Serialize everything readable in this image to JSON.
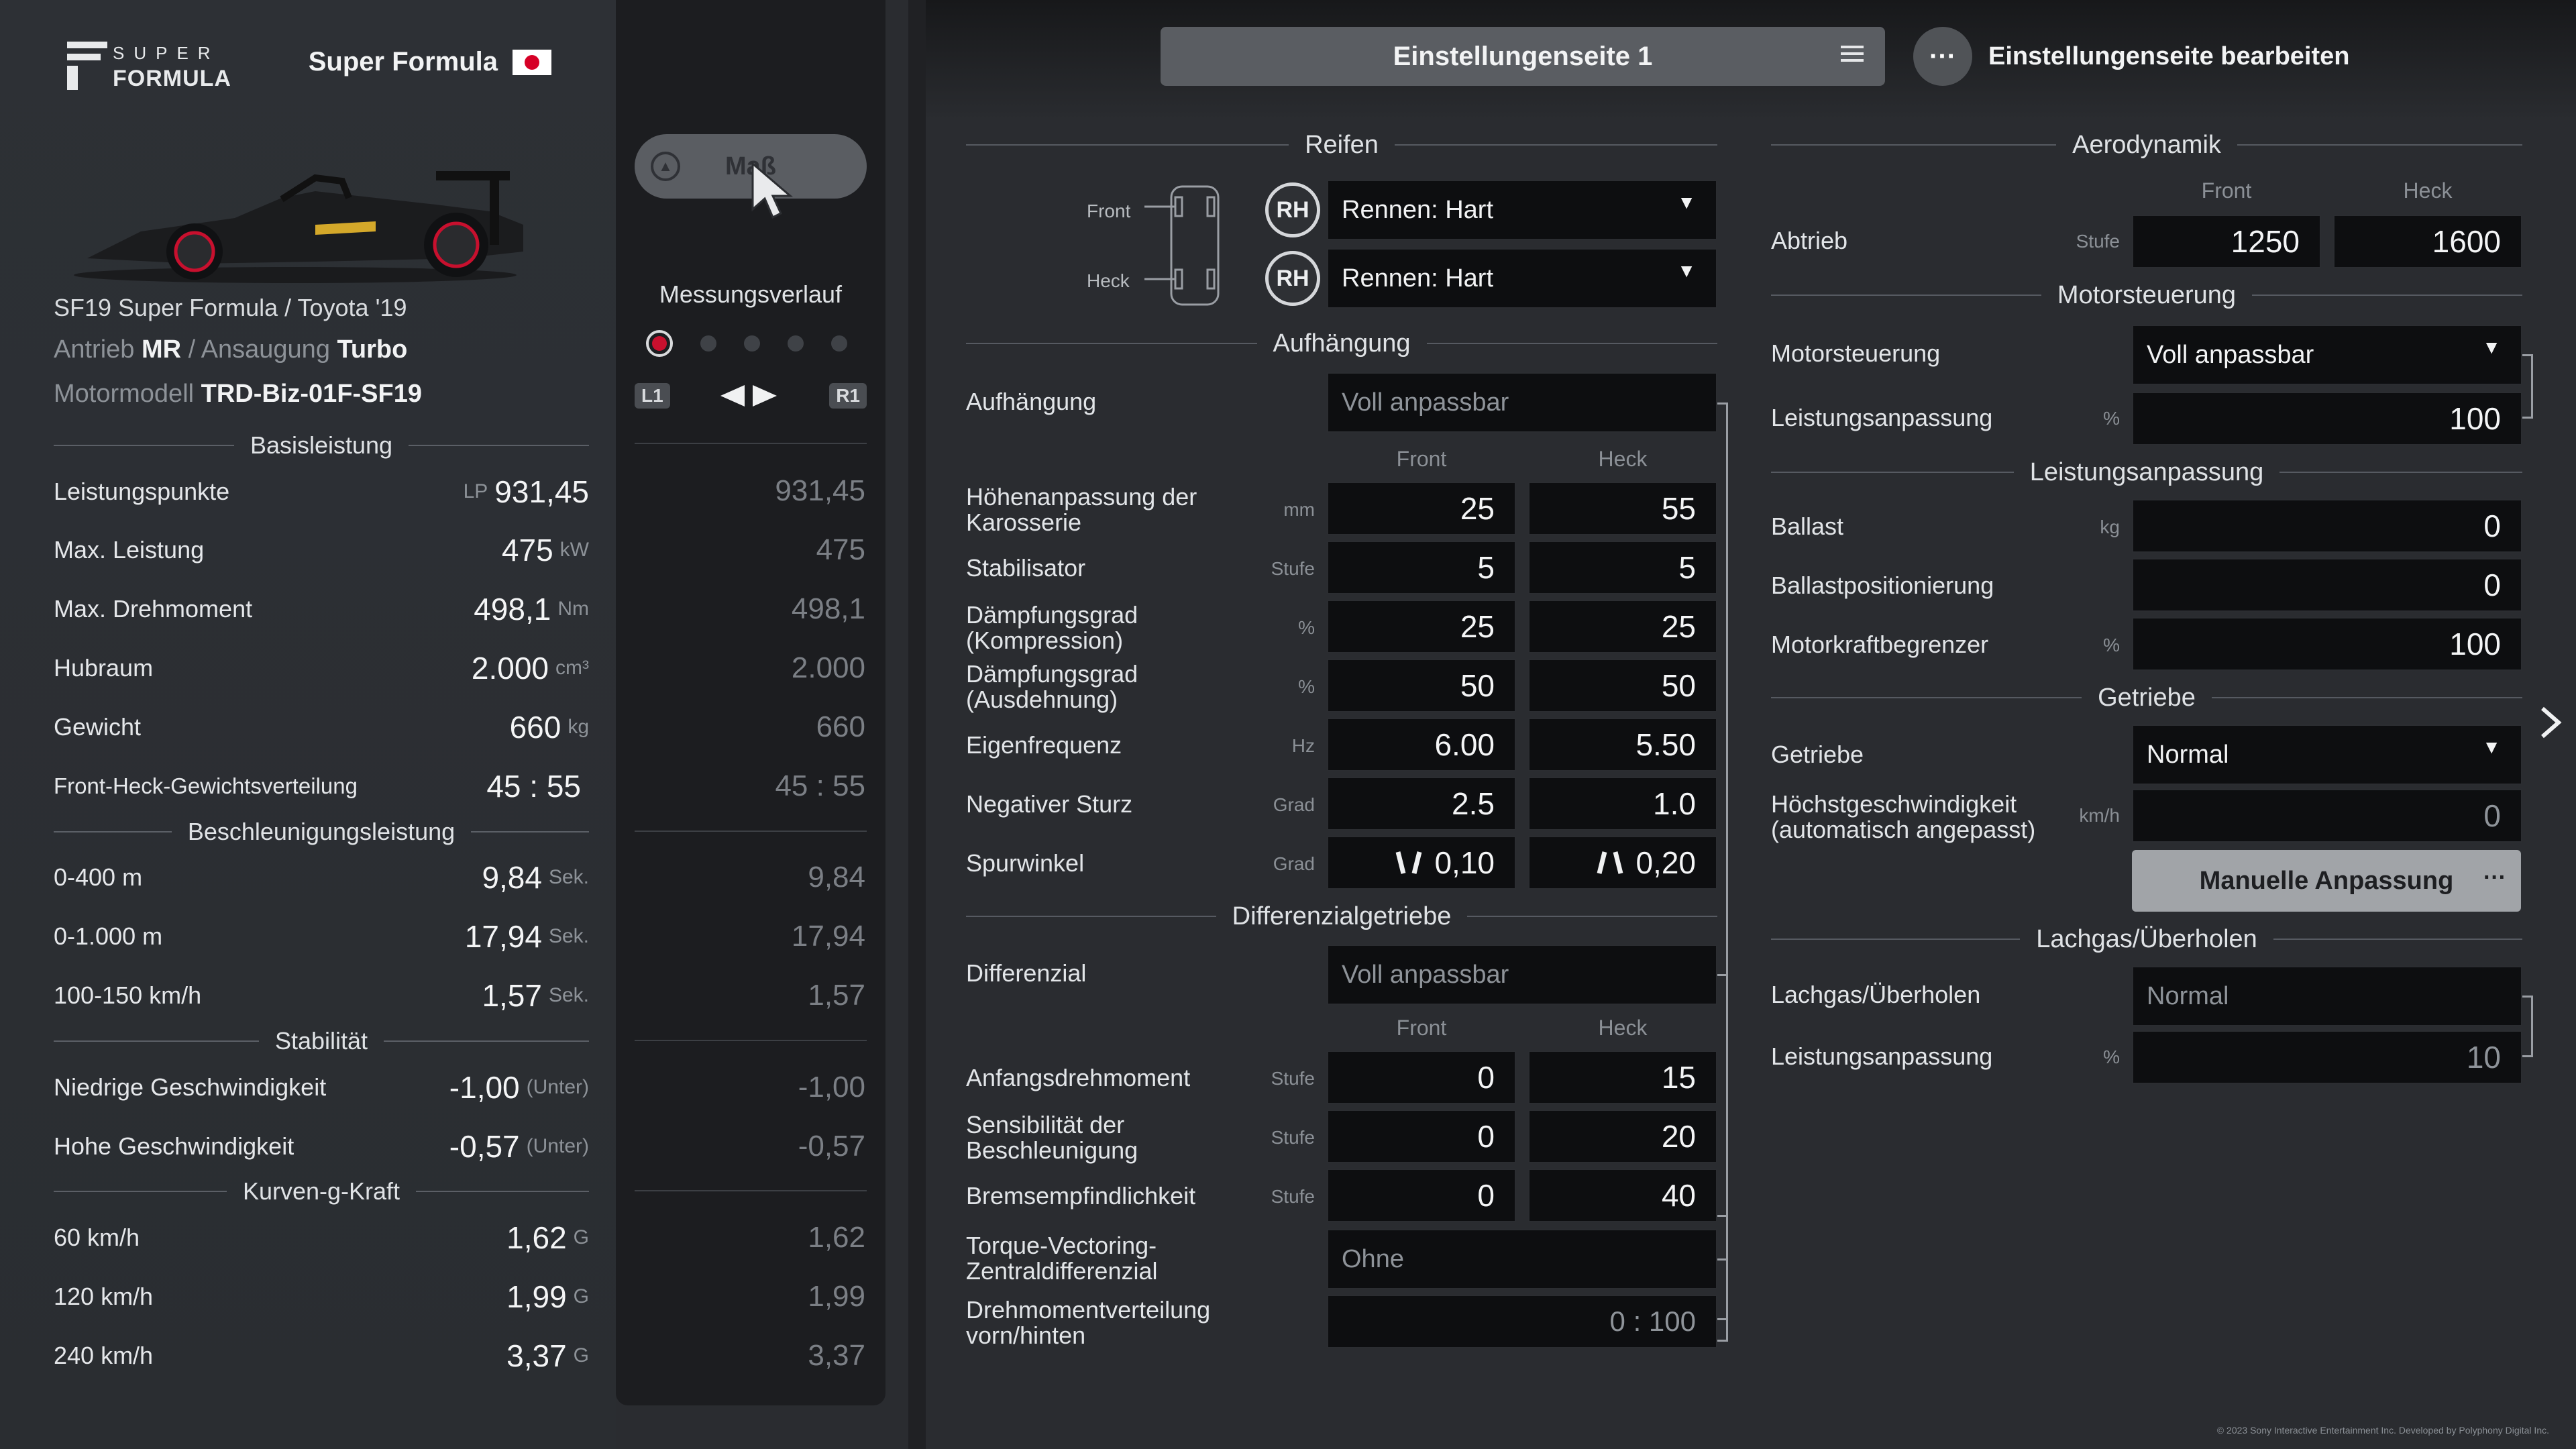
{
  "header": {
    "series_name": "Super Formula",
    "logo_top": "SUPER",
    "logo_bottom": "FORMULA",
    "page_selector": "Einstellungenseite 1",
    "edit_page": "Einstellungenseite bearbeiten"
  },
  "car": {
    "name": "SF19 Super Formula / Toyota '19",
    "drive_label": "Antrieb",
    "drive": "MR",
    "sep": "/",
    "aspiration_label": "Ansaugung",
    "aspiration": "Turbo",
    "engine_label": "Motormodell",
    "engine": "TRD-Biz-01F-SF19"
  },
  "stats": {
    "basis_header": "Basisleistung",
    "pp_label": "Leistungspunkte",
    "pp_prefix": "LP",
    "pp_value": "931,45",
    "power_label": "Max. Leistung",
    "power_value": "475",
    "power_unit": "kW",
    "torque_label": "Max. Drehmoment",
    "torque_value": "498,1",
    "torque_unit": "Nm",
    "disp_label": "Hubraum",
    "disp_value": "2.000",
    "disp_unit": "cm³",
    "weight_label": "Gewicht",
    "weight_value": "660",
    "weight_unit": "kg",
    "dist_label": "Front-Heck-Gewichtsverteilung",
    "dist_value": "45 : 55",
    "accel_header": "Beschleunigungsleistung",
    "a400_label": "0-400 m",
    "a400_value": "9,84",
    "a400_unit": "Sek.",
    "a1000_label": "0-1.000 m",
    "a1000_value": "17,94",
    "a1000_unit": "Sek.",
    "a100_label": "100-150 km/h",
    "a100_value": "1,57",
    "a100_unit": "Sek.",
    "stab_header": "Stabilität",
    "low_label": "Niedrige Geschwindigkeit",
    "low_value": "-1,00",
    "low_unit": "(Unter)",
    "high_label": "Hohe Geschwindigkeit",
    "high_value": "-0,57",
    "high_unit": "(Unter)",
    "g_header": "Kurven-g-Kraft",
    "g60_label": "60 km/h",
    "g60_value": "1,62",
    "g_unit": "G",
    "g120_label": "120 km/h",
    "g120_value": "1,99",
    "g240_label": "240 km/h",
    "g240_value": "3,37"
  },
  "history": {
    "button_label": "Maß",
    "button_icon": "triangle-icon",
    "title": "Messungsverlauf",
    "l1": "L1",
    "r1": "R1",
    "values": [
      "931,45",
      "475",
      "498,1",
      "2.000",
      "660",
      "45 : 55",
      "9,84",
      "17,94",
      "1,57",
      "-1,00",
      "-0,57",
      "1,62",
      "1,99",
      "3,37"
    ]
  },
  "tires": {
    "header": "Reifen",
    "front_label": "Front",
    "rear_label": "Heck",
    "rh_badge": "RH",
    "front_value": "Rennen: Hart",
    "rear_value": "Rennen: Hart"
  },
  "suspension": {
    "header": "Aufhängung",
    "type_label": "Aufhängung",
    "type_value": "Voll anpassbar",
    "col_front": "Front",
    "col_rear": "Heck",
    "ride_label": "Höhenanpassung der Karosserie",
    "ride_unit": "mm",
    "ride_front": "25",
    "ride_rear": "55",
    "arb_label": "Stabilisator",
    "arb_unit": "Stufe",
    "arb_front": "5",
    "arb_rear": "5",
    "comp_label": "Dämpfungsgrad (Kompression)",
    "comp_unit": "%",
    "comp_front": "25",
    "comp_rear": "25",
    "ext_label": "Dämpfungsgrad (Ausdehnung)",
    "ext_unit": "%",
    "ext_front": "50",
    "ext_rear": "50",
    "freq_label": "Eigenfrequenz",
    "freq_unit": "Hz",
    "freq_front": "6.00",
    "freq_rear": "5.50",
    "camber_label": "Negativer Sturz",
    "camber_unit": "Grad",
    "camber_front": "2.5",
    "camber_rear": "1.0",
    "toe_label": "Spurwinkel",
    "toe_unit": "Grad",
    "toe_front": "0,10",
    "toe_rear": "0,20"
  },
  "differential": {
    "header": "Differenzialgetriebe",
    "type_label": "Differenzial",
    "type_value": "Voll anpassbar",
    "col_front": "Front",
    "col_rear": "Heck",
    "initial_label": "Anfangsdrehmoment",
    "initial_unit": "Stufe",
    "initial_front": "0",
    "initial_rear": "15",
    "accel_label": "Sensibilität der Beschleunigung",
    "accel_unit": "Stufe",
    "accel_front": "0",
    "accel_rear": "20",
    "brake_label": "Bremsempfindlichkeit",
    "brake_unit": "Stufe",
    "brake_front": "0",
    "brake_rear": "40",
    "tv_label": "Torque-Vectoring-Zentraldifferenzial",
    "tv_value": "Ohne",
    "split_label": "Drehmomentverteilung vorn/hinten",
    "split_value": "0 : 100"
  },
  "aero": {
    "header": "Aerodynamik",
    "col_front": "Front",
    "col_rear": "Heck",
    "downforce_label": "Abtrieb",
    "downforce_unit": "Stufe",
    "downforce_front": "1250",
    "downforce_rear": "1600"
  },
  "ecu": {
    "header": "Motorsteuerung",
    "label": "Motorsteuerung",
    "value": "Voll anpassbar",
    "power_label": "Leistungsanpassung",
    "power_unit": "%",
    "power_value": "100"
  },
  "performance": {
    "header": "Leistungsanpassung",
    "ballast_label": "Ballast",
    "ballast_unit": "kg",
    "ballast_value": "0",
    "ballast_pos_label": "Ballastpositionierung",
    "ballast_pos_value": "0",
    "restrictor_label": "Motorkraftbegrenzer",
    "restrictor_unit": "%",
    "restrictor_value": "100"
  },
  "transmission": {
    "header": "Getriebe",
    "label": "Getriebe",
    "value": "Normal",
    "topspeed_label": "Höchstgeschwindigkeit (automatisch angepasst)",
    "topspeed_unit": "km/h",
    "topspeed_value": "0",
    "manual_button": "Manuelle Anpassung"
  },
  "nitrous": {
    "header": "Lachgas/Überholen",
    "label": "Lachgas/Überholen",
    "value": "Normal",
    "power_label": "Leistungsanpassung",
    "power_unit": "%",
    "power_value": "10"
  },
  "footer": {
    "copyright": "© 2023 Sony Interactive Entertainment Inc. Developed by Polyphony Digital Inc."
  },
  "colors": {
    "accent_red": "#c8102e",
    "field_bg": "#0d0e10",
    "panel_bg": "#2d3035"
  }
}
